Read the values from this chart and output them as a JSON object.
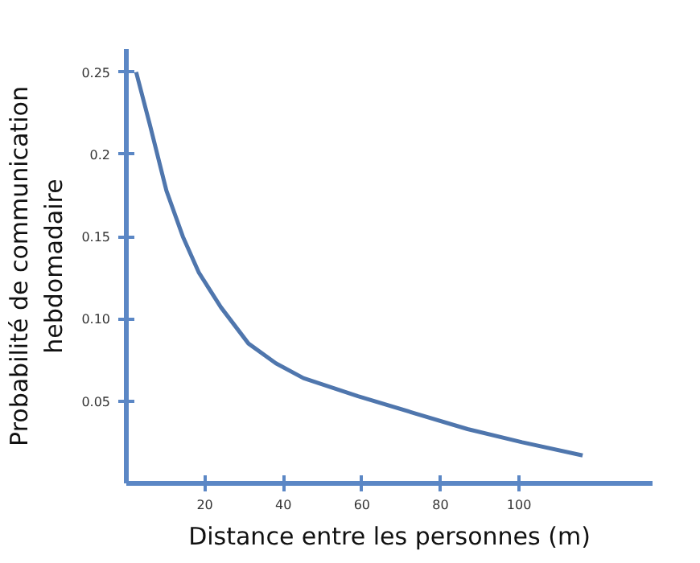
{
  "chart_data": {
    "type": "line",
    "xlabel": "Distance entre les personnes (m)",
    "ylabel": "Probabilité de communication\nhebdomadaire",
    "x": [
      2.5,
      6.0,
      10.2,
      14.4,
      18.5,
      24.1,
      31.1,
      38.1,
      45.1,
      59.0,
      72.9,
      86.9,
      100.8,
      116.2
    ],
    "series": [
      {
        "color": "#4f76ad",
        "values": [
          0.25,
          0.218,
          0.178,
          0.15,
          0.128,
          0.107,
          0.085,
          0.073,
          0.064,
          0.053,
          0.043,
          0.033,
          0.025,
          0.017
        ]
      }
    ],
    "xlim": [
      0,
      134
    ],
    "ylim": [
      0,
      0.264
    ],
    "xticks": [
      20,
      40,
      60,
      80,
      100
    ],
    "yticks": [
      {
        "value": 0.05,
        "label": "0.05"
      },
      {
        "value": 0.1,
        "label": "0.10"
      },
      {
        "value": 0.15,
        "label": "0.15"
      },
      {
        "value": 0.2,
        "label": "0.2"
      },
      {
        "value": 0.25,
        "label": "0.25"
      }
    ],
    "grid": false,
    "marker": "none",
    "line_style": "solid"
  }
}
